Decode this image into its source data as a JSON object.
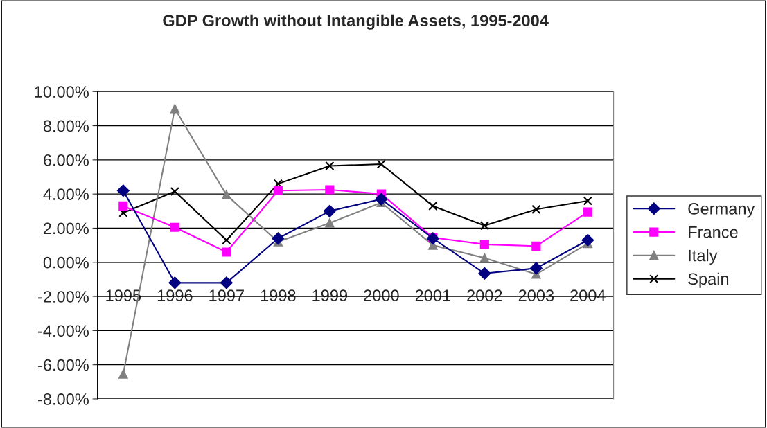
{
  "chart_data": {
    "type": "line",
    "title": "GDP Growth without Intangible Assets, 1995-2004",
    "categories": [
      "1995",
      "1996",
      "1997",
      "1998",
      "1999",
      "2000",
      "2001",
      "2002",
      "2003",
      "2004"
    ],
    "series": [
      {
        "name": "Germany",
        "color": "#000080",
        "marker": "diamond",
        "values": [
          4.2,
          -1.2,
          -1.2,
          1.4,
          3.0,
          3.7,
          1.4,
          -0.65,
          -0.35,
          1.3
        ]
      },
      {
        "name": "France",
        "color": "#ff00ff",
        "marker": "square",
        "values": [
          3.3,
          2.05,
          0.6,
          4.2,
          4.25,
          4.0,
          1.45,
          1.05,
          0.95,
          2.95
        ]
      },
      {
        "name": "Italy",
        "color": "#808080",
        "marker": "triangle",
        "values": [
          -6.55,
          9.0,
          3.95,
          1.2,
          2.3,
          3.5,
          1.0,
          0.25,
          -0.7,
          1.1
        ]
      },
      {
        "name": "Spain",
        "color": "#000000",
        "marker": "cross",
        "values": [
          2.9,
          4.15,
          1.3,
          4.6,
          5.65,
          5.75,
          3.3,
          2.15,
          3.1,
          3.6
        ]
      }
    ],
    "ylim": [
      -8,
      10
    ],
    "yticks": [
      {
        "value": -8,
        "label": "-8.00%"
      },
      {
        "value": -6,
        "label": "-6.00%"
      },
      {
        "value": -4,
        "label": "-4.00%"
      },
      {
        "value": -2,
        "label": "-2.00%"
      },
      {
        "value": 0,
        "label": "0.00%"
      },
      {
        "value": 2,
        "label": "2.00%"
      },
      {
        "value": 4,
        "label": "4.00%"
      },
      {
        "value": 6,
        "label": "6.00%"
      },
      {
        "value": 8,
        "label": "8.00%"
      },
      {
        "value": 10,
        "label": "10.00%"
      }
    ],
    "grid": "y",
    "legend": "right",
    "line_style": "solid"
  }
}
